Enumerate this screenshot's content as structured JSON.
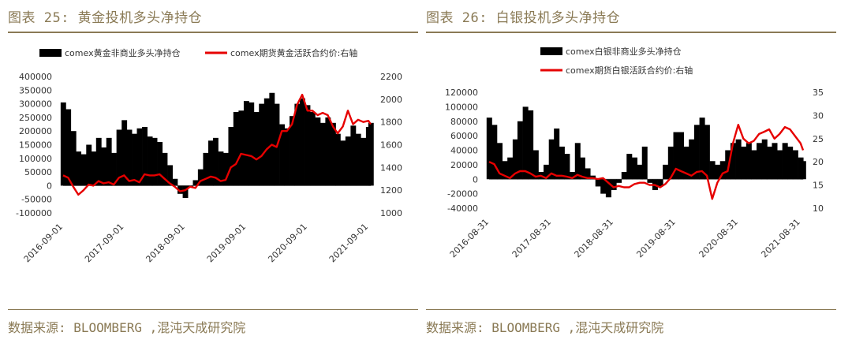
{
  "figures": [
    {
      "title": "图表 25: 黄金投机多头净持仓",
      "source": "数据来源: BLOOMBERG ,混沌天成研究院"
    },
    {
      "title": "图表 26: 白银投机多头净持仓",
      "source": "数据来源: BLOOMBERG ,混沌天成研究院"
    }
  ],
  "chart_data": [
    {
      "type": "bar+line",
      "legend_position": "top",
      "series": [
        {
          "name": "comex黄金非商业多头净持仓",
          "kind": "bar",
          "axis": "left",
          "color": "#000000",
          "x": [
            "2016-09-01",
            "2016-10-01",
            "2016-11-01",
            "2016-12-01",
            "2017-01-01",
            "2017-02-01",
            "2017-03-01",
            "2017-04-01",
            "2017-05-01",
            "2017-06-01",
            "2017-07-01",
            "2017-08-01",
            "2017-09-01",
            "2017-10-01",
            "2017-11-01",
            "2017-12-01",
            "2018-01-01",
            "2018-02-01",
            "2018-03-01",
            "2018-04-01",
            "2018-05-01",
            "2018-06-01",
            "2018-07-01",
            "2018-08-01",
            "2018-09-01",
            "2018-10-01",
            "2018-11-01",
            "2018-12-01",
            "2019-01-01",
            "2019-02-01",
            "2019-03-01",
            "2019-04-01",
            "2019-05-01",
            "2019-06-01",
            "2019-07-01",
            "2019-08-01",
            "2019-09-01",
            "2019-10-01",
            "2019-11-01",
            "2019-12-01",
            "2020-01-01",
            "2020-02-01",
            "2020-03-01",
            "2020-04-01",
            "2020-05-01",
            "2020-06-01",
            "2020-07-01",
            "2020-08-01",
            "2020-09-01",
            "2020-10-01",
            "2020-11-01",
            "2020-12-01",
            "2021-01-01",
            "2021-02-01",
            "2021-03-01",
            "2021-04-01",
            "2021-05-01",
            "2021-06-01",
            "2021-07-01",
            "2021-08-01",
            "2021-09-01",
            "2021-09-15"
          ],
          "values": [
            305000,
            280000,
            200000,
            125000,
            115000,
            150000,
            125000,
            175000,
            140000,
            175000,
            120000,
            205000,
            240000,
            205000,
            190000,
            210000,
            215000,
            180000,
            175000,
            160000,
            120000,
            75000,
            25000,
            -30000,
            -45000,
            -5000,
            20000,
            60000,
            120000,
            165000,
            175000,
            125000,
            120000,
            215000,
            270000,
            275000,
            310000,
            305000,
            270000,
            300000,
            320000,
            340000,
            300000,
            225000,
            210000,
            255000,
            300000,
            320000,
            295000,
            270000,
            250000,
            230000,
            250000,
            230000,
            190000,
            165000,
            180000,
            220000,
            190000,
            175000,
            215000,
            230000
          ]
        },
        {
          "name": "comex期货黄金活跃合约价:右轴",
          "kind": "line",
          "axis": "right",
          "color": "#e60000",
          "x": [
            "2016-09-01",
            "2016-10-01",
            "2016-11-01",
            "2016-12-01",
            "2017-01-01",
            "2017-02-01",
            "2017-03-01",
            "2017-04-01",
            "2017-05-01",
            "2017-06-01",
            "2017-07-01",
            "2017-08-01",
            "2017-09-01",
            "2017-10-01",
            "2017-11-01",
            "2017-12-01",
            "2018-01-01",
            "2018-02-01",
            "2018-03-01",
            "2018-04-01",
            "2018-05-01",
            "2018-06-01",
            "2018-07-01",
            "2018-08-01",
            "2018-09-01",
            "2018-10-01",
            "2018-11-01",
            "2018-12-01",
            "2019-01-01",
            "2019-02-01",
            "2019-03-01",
            "2019-04-01",
            "2019-05-01",
            "2019-06-01",
            "2019-07-01",
            "2019-08-01",
            "2019-09-01",
            "2019-10-01",
            "2019-11-01",
            "2019-12-01",
            "2020-01-01",
            "2020-02-01",
            "2020-03-01",
            "2020-04-01",
            "2020-05-01",
            "2020-06-01",
            "2020-07-01",
            "2020-08-01",
            "2020-09-01",
            "2020-10-01",
            "2020-11-01",
            "2020-12-01",
            "2021-01-01",
            "2021-02-01",
            "2021-03-01",
            "2021-04-01",
            "2021-05-01",
            "2021-06-01",
            "2021-07-01",
            "2021-08-01",
            "2021-09-01",
            "2021-09-15"
          ],
          "values": [
            1330,
            1310,
            1230,
            1160,
            1200,
            1250,
            1240,
            1280,
            1260,
            1270,
            1250,
            1310,
            1330,
            1280,
            1290,
            1270,
            1340,
            1330,
            1330,
            1340,
            1300,
            1260,
            1230,
            1190,
            1200,
            1230,
            1220,
            1280,
            1300,
            1320,
            1310,
            1280,
            1290,
            1400,
            1430,
            1520,
            1510,
            1500,
            1470,
            1500,
            1560,
            1600,
            1580,
            1720,
            1720,
            1780,
            1950,
            2040,
            1900,
            1900,
            1860,
            1880,
            1860,
            1760,
            1700,
            1760,
            1900,
            1780,
            1820,
            1800,
            1810,
            1780
          ]
        }
      ],
      "y_left": {
        "ylim": [
          -100000,
          400000
        ],
        "ticks": [
          -100000,
          -50000,
          0,
          50000,
          100000,
          150000,
          200000,
          250000,
          300000,
          350000,
          400000
        ]
      },
      "y_right": {
        "ylim": [
          1000,
          2200
        ],
        "ticks": [
          1000,
          1200,
          1400,
          1600,
          1800,
          2000,
          2200
        ]
      },
      "x_ticks": [
        "2016-09-01",
        "2017-09-01",
        "2018-09-01",
        "2019-09-01",
        "2020-09-01",
        "2021-09-01"
      ]
    },
    {
      "type": "bar+line",
      "legend_position": "top",
      "series": [
        {
          "name": "comex白银非商业多头净持仓",
          "kind": "bar",
          "axis": "left",
          "color": "#000000",
          "x": [
            "2016-08-31",
            "2016-09-30",
            "2016-10-31",
            "2016-11-30",
            "2016-12-31",
            "2017-01-31",
            "2017-02-28",
            "2017-03-31",
            "2017-04-30",
            "2017-05-31",
            "2017-06-30",
            "2017-07-31",
            "2017-08-31",
            "2017-09-30",
            "2017-10-31",
            "2017-11-30",
            "2017-12-31",
            "2018-01-31",
            "2018-02-28",
            "2018-03-31",
            "2018-04-30",
            "2018-05-31",
            "2018-06-30",
            "2018-07-31",
            "2018-08-31",
            "2018-09-30",
            "2018-10-31",
            "2018-11-30",
            "2018-12-31",
            "2019-01-31",
            "2019-02-28",
            "2019-03-31",
            "2019-04-30",
            "2019-05-31",
            "2019-06-30",
            "2019-07-31",
            "2019-08-31",
            "2019-09-30",
            "2019-10-31",
            "2019-11-30",
            "2019-12-31",
            "2020-01-31",
            "2020-02-29",
            "2020-03-31",
            "2020-04-30",
            "2020-05-31",
            "2020-06-30",
            "2020-07-31",
            "2020-08-31",
            "2020-09-30",
            "2020-10-31",
            "2020-11-30",
            "2020-12-31",
            "2021-01-31",
            "2021-02-28",
            "2021-03-31",
            "2021-04-30",
            "2021-05-31",
            "2021-06-30",
            "2021-07-31",
            "2021-08-31",
            "2021-09-15"
          ],
          "values": [
            85000,
            75000,
            50000,
            25000,
            30000,
            55000,
            80000,
            100000,
            95000,
            40000,
            10000,
            20000,
            55000,
            70000,
            45000,
            35000,
            10000,
            50000,
            30000,
            15000,
            5000,
            -10000,
            -20000,
            -25000,
            -15000,
            -5000,
            10000,
            35000,
            30000,
            20000,
            45000,
            -5000,
            -15000,
            -10000,
            20000,
            45000,
            65000,
            65000,
            45000,
            55000,
            75000,
            85000,
            75000,
            25000,
            20000,
            25000,
            40000,
            50000,
            55000,
            45000,
            50000,
            40000,
            50000,
            55000,
            45000,
            50000,
            40000,
            50000,
            45000,
            40000,
            30000,
            25000
          ]
        },
        {
          "name": "comex期货白银活跃合约价:右轴",
          "kind": "line",
          "axis": "right",
          "color": "#e60000",
          "x": [
            "2016-08-31",
            "2016-09-30",
            "2016-10-31",
            "2016-11-30",
            "2016-12-31",
            "2017-01-31",
            "2017-02-28",
            "2017-03-31",
            "2017-04-30",
            "2017-05-31",
            "2017-06-30",
            "2017-07-31",
            "2017-08-31",
            "2017-09-30",
            "2017-10-31",
            "2017-11-30",
            "2017-12-31",
            "2018-01-31",
            "2018-02-28",
            "2018-03-31",
            "2018-04-30",
            "2018-05-31",
            "2018-06-30",
            "2018-07-31",
            "2018-08-31",
            "2018-09-30",
            "2018-10-31",
            "2018-11-30",
            "2018-12-31",
            "2019-01-31",
            "2019-02-28",
            "2019-03-31",
            "2019-04-30",
            "2019-05-31",
            "2019-06-30",
            "2019-07-31",
            "2019-08-31",
            "2019-09-30",
            "2019-10-31",
            "2019-11-30",
            "2019-12-31",
            "2020-01-31",
            "2020-02-29",
            "2020-03-31",
            "2020-04-30",
            "2020-05-31",
            "2020-06-30",
            "2020-07-31",
            "2020-08-31",
            "2020-09-30",
            "2020-10-31",
            "2020-11-30",
            "2020-12-31",
            "2021-01-31",
            "2021-02-28",
            "2021-03-31",
            "2021-04-30",
            "2021-05-31",
            "2021-06-30",
            "2021-07-31",
            "2021-08-31",
            "2021-09-15"
          ],
          "values": [
            20,
            19.5,
            17.5,
            17,
            16.5,
            17.5,
            18,
            18,
            17.5,
            16.8,
            17,
            16.5,
            17.5,
            17,
            17,
            16.8,
            16.5,
            17.2,
            16.8,
            16.5,
            16.5,
            16.3,
            16.5,
            15.5,
            14.5,
            14.8,
            14.5,
            14.5,
            15.2,
            15.5,
            15.5,
            15,
            15,
            14.5,
            15.2,
            16.5,
            18.5,
            18,
            17.5,
            17,
            17.8,
            18,
            17,
            12,
            15.5,
            17.5,
            18,
            24,
            28,
            25,
            24,
            24.5,
            26,
            26.5,
            27,
            25,
            26,
            27.5,
            27,
            25.5,
            24,
            22.5
          ]
        }
      ],
      "y_left": {
        "ylim": [
          -40000,
          120000
        ],
        "ticks": [
          -40000,
          -20000,
          0,
          20000,
          40000,
          60000,
          80000,
          100000,
          120000
        ]
      },
      "y_right": {
        "ylim": [
          10,
          35
        ],
        "ticks": [
          10,
          15,
          20,
          25,
          30,
          35
        ]
      },
      "x_ticks": [
        "2016-08-31",
        "2017-08-31",
        "2018-08-31",
        "2019-08-31",
        "2020-08-31",
        "2021-08-31"
      ]
    }
  ]
}
